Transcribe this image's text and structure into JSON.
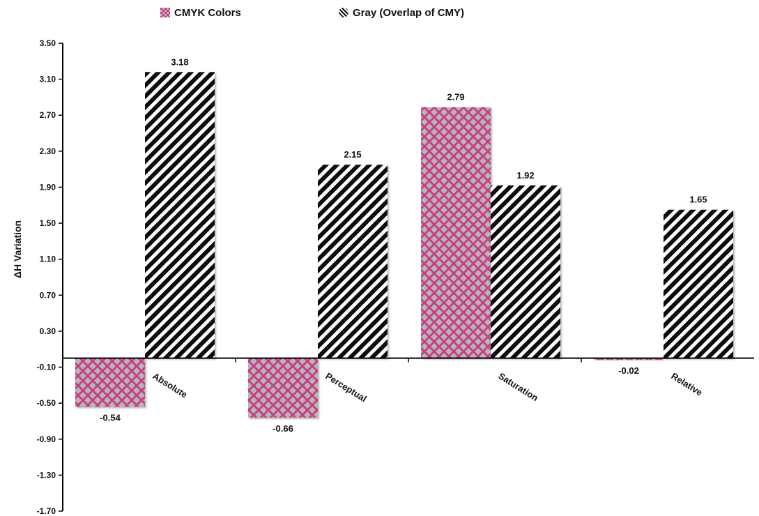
{
  "chart_data": {
    "type": "bar",
    "categories": [
      "Absolute",
      "Perceptual",
      "Saturation",
      "Relative"
    ],
    "series": [
      {
        "name": "CMYK Colors",
        "values": [
          -0.54,
          -0.66,
          2.79,
          -0.02
        ],
        "value_labels": [
          "-0.54",
          "-0.66",
          "2.79",
          "-0.02"
        ]
      },
      {
        "name": "Gray (Overlap of CMY)",
        "values": [
          3.18,
          2.15,
          1.92,
          1.65
        ],
        "value_labels": [
          "3.18",
          "2.15",
          "1.92",
          "1.65"
        ]
      }
    ],
    "ylabel": "ΔH Variation",
    "xlabel": "",
    "title": "",
    "ylim": [
      -1.7,
      3.5
    ],
    "yticks": [
      3.5,
      3.1,
      2.7,
      2.3,
      1.9,
      1.5,
      1.1,
      0.7,
      0.3,
      -0.1,
      -0.5,
      -0.9,
      -1.3,
      -1.7
    ],
    "ytick_labels": [
      "3.50",
      "3.10",
      "2.70",
      "2.30",
      "1.90",
      "1.50",
      "1.10",
      "0.70",
      "0.30",
      "-0.10",
      "-0.50",
      "-0.90",
      "-1.30",
      "-1.70"
    ],
    "grid": false,
    "legend_position": "top-center",
    "colors": {
      "cmyk": "#c93c86",
      "cmyk_dots": "#b6b6b6",
      "gray_stripe": "#111111",
      "axis": "#000000"
    }
  }
}
